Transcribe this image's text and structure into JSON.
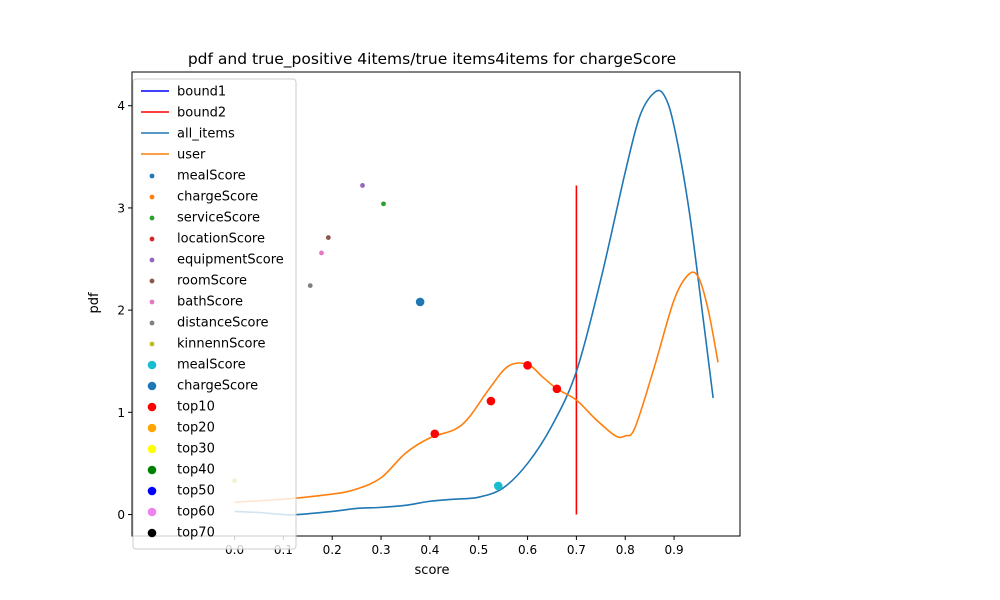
{
  "chart_data": {
    "type": "line",
    "title": "pdf and true_positive 4items/true items4items for chargeScore",
    "xlabel": "score",
    "ylabel": "pdf",
    "xlim": [
      -0.21,
      1.035
    ],
    "ylim": [
      -0.21,
      4.33
    ],
    "xticks": [
      0.0,
      0.1,
      0.2,
      0.3,
      0.4,
      0.5,
      0.6,
      0.7,
      0.8,
      0.9
    ],
    "xtick_labels": [
      "0.0",
      "0.1",
      "0.2",
      "0.3",
      "0.4",
      "0.5",
      "0.6",
      "0.7",
      "0.8",
      "0.9"
    ],
    "yticks": [
      0,
      1,
      2,
      3,
      4
    ],
    "ytick_labels": [
      "0",
      "1",
      "2",
      "3",
      "4"
    ],
    "legend_position": "upper-left",
    "lines": [
      {
        "name": "bound1",
        "color": "#0000ff",
        "x": [
          0.7,
          0.7
        ],
        "y": [
          0,
          3.22
        ],
        "visible": false
      },
      {
        "name": "bound2",
        "color": "#ff0000",
        "x": [
          0.7,
          0.7
        ],
        "y": [
          0,
          3.22
        ],
        "visible": true
      },
      {
        "name": "all_items",
        "color": "#1f77b4",
        "x": [
          0.0,
          0.05,
          0.1,
          0.13,
          0.2,
          0.25,
          0.3,
          0.35,
          0.4,
          0.45,
          0.5,
          0.55,
          0.6,
          0.65,
          0.7,
          0.75,
          0.8,
          0.83,
          0.86,
          0.88,
          0.9,
          0.93,
          0.96,
          0.98
        ],
        "y": [
          0.03,
          0.02,
          0.0,
          0.0,
          0.03,
          0.06,
          0.07,
          0.09,
          0.13,
          0.15,
          0.17,
          0.26,
          0.5,
          0.87,
          1.4,
          2.3,
          3.35,
          3.9,
          4.13,
          4.1,
          3.8,
          3.0,
          1.9,
          1.14
        ]
      },
      {
        "name": "user",
        "color": "#ff7f0e",
        "x": [
          0.0,
          0.1,
          0.2,
          0.25,
          0.3,
          0.35,
          0.4,
          0.45,
          0.48,
          0.52,
          0.56,
          0.6,
          0.63,
          0.66,
          0.7,
          0.74,
          0.78,
          0.8,
          0.82,
          0.86,
          0.9,
          0.93,
          0.95,
          0.97,
          0.99
        ],
        "y": [
          0.12,
          0.15,
          0.2,
          0.25,
          0.36,
          0.6,
          0.75,
          0.83,
          0.95,
          1.22,
          1.45,
          1.47,
          1.35,
          1.23,
          1.12,
          0.93,
          0.77,
          0.77,
          0.85,
          1.45,
          2.1,
          2.35,
          2.32,
          2.0,
          1.49
        ]
      }
    ],
    "scatter_series": [
      {
        "name": "mealScore",
        "color": "#1f77b4",
        "size": "small",
        "points": []
      },
      {
        "name": "chargeScore",
        "color": "#ff7f0e",
        "size": "small",
        "points": []
      },
      {
        "name": "serviceScore",
        "color": "#2ca02c",
        "size": "small",
        "points": [
          {
            "x": 0.305,
            "y": 3.04
          }
        ]
      },
      {
        "name": "locationScore",
        "color": "#d62728",
        "size": "small",
        "points": []
      },
      {
        "name": "equipmentScore",
        "color": "#9467bd",
        "size": "small",
        "points": [
          {
            "x": 0.262,
            "y": 3.22
          }
        ]
      },
      {
        "name": "roomScore",
        "color": "#8c564b",
        "size": "small",
        "points": [
          {
            "x": 0.192,
            "y": 2.71
          }
        ]
      },
      {
        "name": "bathScore",
        "color": "#e377c2",
        "size": "small",
        "points": [
          {
            "x": 0.178,
            "y": 2.56
          }
        ]
      },
      {
        "name": "distanceScore",
        "color": "#7f7f7f",
        "size": "small",
        "points": [
          {
            "x": 0.155,
            "y": 2.24
          }
        ]
      },
      {
        "name": "kinnennScore",
        "color": "#bcbd22",
        "size": "small",
        "points": [
          {
            "x": 0.0,
            "y": 0.33
          }
        ]
      },
      {
        "name": "mealScore",
        "color": "#17becf",
        "size": "large",
        "points": [
          {
            "x": 0.54,
            "y": 0.28
          }
        ]
      },
      {
        "name": "chargeScore",
        "color": "#1f77b4",
        "size": "large",
        "points": [
          {
            "x": 0.38,
            "y": 2.08
          }
        ]
      },
      {
        "name": "top10",
        "color": "#ff0000",
        "size": "large",
        "points": [
          {
            "x": 0.41,
            "y": 0.79
          },
          {
            "x": 0.525,
            "y": 1.11
          },
          {
            "x": 0.6,
            "y": 1.46
          },
          {
            "x": 0.66,
            "y": 1.23
          }
        ]
      },
      {
        "name": "top20",
        "color": "#ffa500",
        "size": "large",
        "points": []
      },
      {
        "name": "top30",
        "color": "#ffff00",
        "size": "large",
        "points": []
      },
      {
        "name": "top40",
        "color": "#008000",
        "size": "large",
        "points": []
      },
      {
        "name": "top50",
        "color": "#0000ff",
        "size": "large",
        "points": []
      },
      {
        "name": "top60",
        "color": "#ee82ee",
        "size": "large",
        "points": []
      },
      {
        "name": "top70",
        "color": "#000000",
        "size": "large",
        "points": []
      }
    ]
  }
}
